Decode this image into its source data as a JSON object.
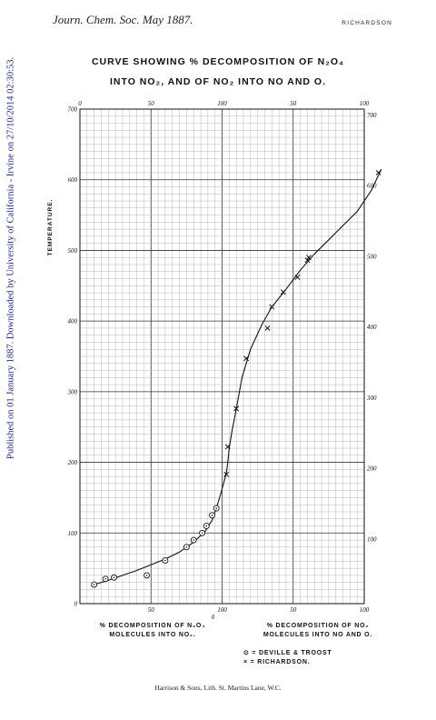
{
  "header": {
    "journal": "Journ. Chem. Soc. May 1887.",
    "author": "RICHARDSON"
  },
  "side_note": "Published on 01 January 1887. Downloaded by University of California - Irvine on 27/10/2014 02:30:53.",
  "footer": "Harrison & Sons, Lith. St. Martins Lane, W.C.",
  "chart_data": {
    "type": "scatter",
    "title": "CURVE SHOWING % DECOMPOSITION OF N₂O₄",
    "subtitle": "INTO NO₂, AND OF NO₂ INTO NO AND O.",
    "ylabel": "TEMPERATURE.",
    "xlabel_left": [
      "% DECOMPOSITION OF N₂O₄",
      "MOLECULES INTO NO₂."
    ],
    "xlabel_right": [
      "% DECOMPOSITION OF NO₂",
      "MOLECULES INTO NO AND O."
    ],
    "ylim": [
      0,
      700
    ],
    "xlim": [
      0,
      200
    ],
    "y_ticks": [
      "0",
      "100",
      "200",
      "300",
      "400",
      "500",
      "600",
      "700"
    ],
    "y_ticks_right": [
      "100",
      "200",
      "300",
      "400",
      "500",
      "600",
      "700"
    ],
    "x_ticks_top": [
      "0",
      "50",
      "100",
      "50",
      "100"
    ],
    "x_ticks_bottom": [
      "50",
      "100",
      "0",
      "50",
      "100"
    ],
    "grid": true,
    "legend": {
      "placement": "bottom-right",
      "entries": [
        "⊙ = DEVILLE & TROOST",
        "× = RICHARDSON."
      ]
    },
    "series": [
      {
        "name": "DEVILLE & TROOST",
        "marker": "circle-dot",
        "x": [
          10,
          18,
          24,
          47,
          60,
          75,
          80,
          86,
          89,
          93,
          96
        ],
        "y": [
          27,
          35,
          37,
          40,
          61,
          80,
          90,
          100,
          110,
          125,
          135
        ]
      },
      {
        "name": "RICHARDSON",
        "marker": "cross",
        "x": [
          103,
          104,
          110,
          117,
          132,
          135,
          143,
          153,
          160,
          161,
          210
        ],
        "y": [
          183,
          222,
          276,
          347,
          390,
          420,
          441,
          462,
          486,
          490,
          610
        ]
      }
    ],
    "curve": {
      "x": [
        10,
        20,
        30,
        40,
        50,
        60,
        70,
        80,
        88,
        93,
        96,
        99,
        101,
        103,
        104,
        105,
        107,
        110,
        114,
        120,
        128,
        135,
        145,
        155,
        165,
        175,
        185,
        195,
        205,
        212
      ],
      "y": [
        27,
        33,
        40,
        47,
        55,
        63,
        73,
        87,
        102,
        118,
        135,
        155,
        170,
        185,
        200,
        220,
        245,
        275,
        320,
        360,
        395,
        420,
        445,
        472,
        495,
        515,
        535,
        555,
        585,
        615
      ]
    }
  },
  "colors": {
    "ink": "#111111",
    "grid_minor": "#9a9a9a",
    "grid_major": "#333333"
  }
}
